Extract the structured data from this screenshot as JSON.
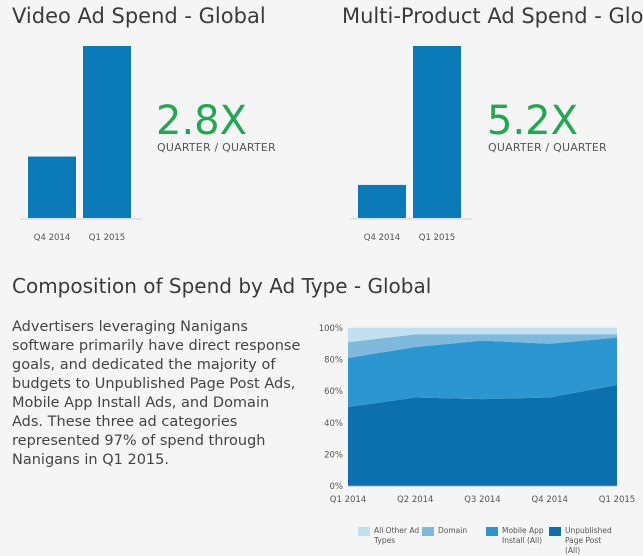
{
  "panels": [
    {
      "title": "Video Ad Spend - Global",
      "metric": "2.8X",
      "caption": "QUARTER / QUARTER"
    },
    {
      "title": "Multi-Product Ad Spend - Global",
      "metric": "5.2X",
      "caption": "QUARTER / QUARTER"
    }
  ],
  "section_title": "Composition of Spend by Ad Type - Global",
  "paragraph": "Advertisers leveraging Nanigans software primarily have direct response goals, and dedicated the majority of budgets to Unpublished Page Post Ads, Mobile App Install Ads, and Domain Ads. These three ad categories represented 97% of spend through Nanigans in Q1 2015.",
  "colors": {
    "bar": "#0a7ab8",
    "metric": "#1fa84f",
    "unpublished": "#0b70ad",
    "mobile_app": "#2b96cf",
    "domain": "#7fb9dc",
    "all_other": "#c2e0ef"
  },
  "chart_data": [
    {
      "type": "bar",
      "title": "Video Ad Spend - Global",
      "categories": [
        "Q4 2014",
        "Q1 2015"
      ],
      "values": [
        1,
        2.8
      ],
      "ylim": [
        0,
        2.8
      ],
      "grid": false
    },
    {
      "type": "bar",
      "title": "Multi-Product Ad Spend - Global",
      "categories": [
        "Q4 2014",
        "Q1 2015"
      ],
      "values": [
        1,
        5.2
      ],
      "ylim": [
        0,
        5.2
      ],
      "grid": false
    },
    {
      "type": "area",
      "stacked": true,
      "title": "Composition of Spend by Ad Type - Global",
      "x": [
        "Q1 2014",
        "Q2 2014",
        "Q3 2014",
        "Q4 2014",
        "Q1 2015"
      ],
      "yticks": [
        "0%",
        "20%",
        "40%",
        "60%",
        "80%",
        "100%"
      ],
      "ylim": [
        0,
        100
      ],
      "grid": true,
      "legend_position": "bottom",
      "series": [
        {
          "name": "Unpublished Page Post (All)",
          "values": [
            50,
            56,
            55,
            56,
            64
          ]
        },
        {
          "name": "Mobile App Install (All)",
          "values": [
            31,
            32,
            37,
            34,
            30
          ]
        },
        {
          "name": "Domain",
          "values": [
            10,
            8,
            4,
            6,
            2
          ]
        },
        {
          "name": "All Other Ad Types",
          "values": [
            9,
            4,
            4,
            4,
            4
          ]
        }
      ]
    }
  ],
  "legend": [
    {
      "label": "All Other Ad Types",
      "color_key": "all_other"
    },
    {
      "label": "Domain",
      "color_key": "domain"
    },
    {
      "label": "Mobile App Install (All)",
      "color_key": "mobile_app"
    },
    {
      "label": "Unpublished Page Post (All)",
      "color_key": "unpublished"
    }
  ]
}
